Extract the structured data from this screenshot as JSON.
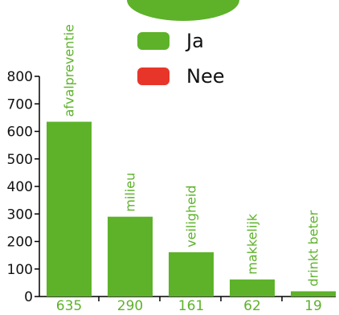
{
  "chart_data": {
    "type": "bar",
    "categories": [
      "afvalpreventie",
      "milieu",
      "veiligheid",
      "makkelijk",
      "drinkt beter"
    ],
    "series": [
      {
        "name": "Ja",
        "color": "#5db22a",
        "values": [
          635,
          290,
          161,
          62,
          19
        ]
      }
    ],
    "value_labels": [
      "635",
      "290",
      "161",
      "62",
      "19"
    ],
    "legend": [
      {
        "label": "Ja",
        "color": "#5db22a"
      },
      {
        "label": "Nee",
        "color": "#e8352a"
      }
    ],
    "legend_position": "top-right",
    "y_ticks": [
      0,
      100,
      200,
      300,
      400,
      500,
      600,
      700,
      800
    ],
    "ylim": [
      0,
      800
    ],
    "grid": false
  }
}
